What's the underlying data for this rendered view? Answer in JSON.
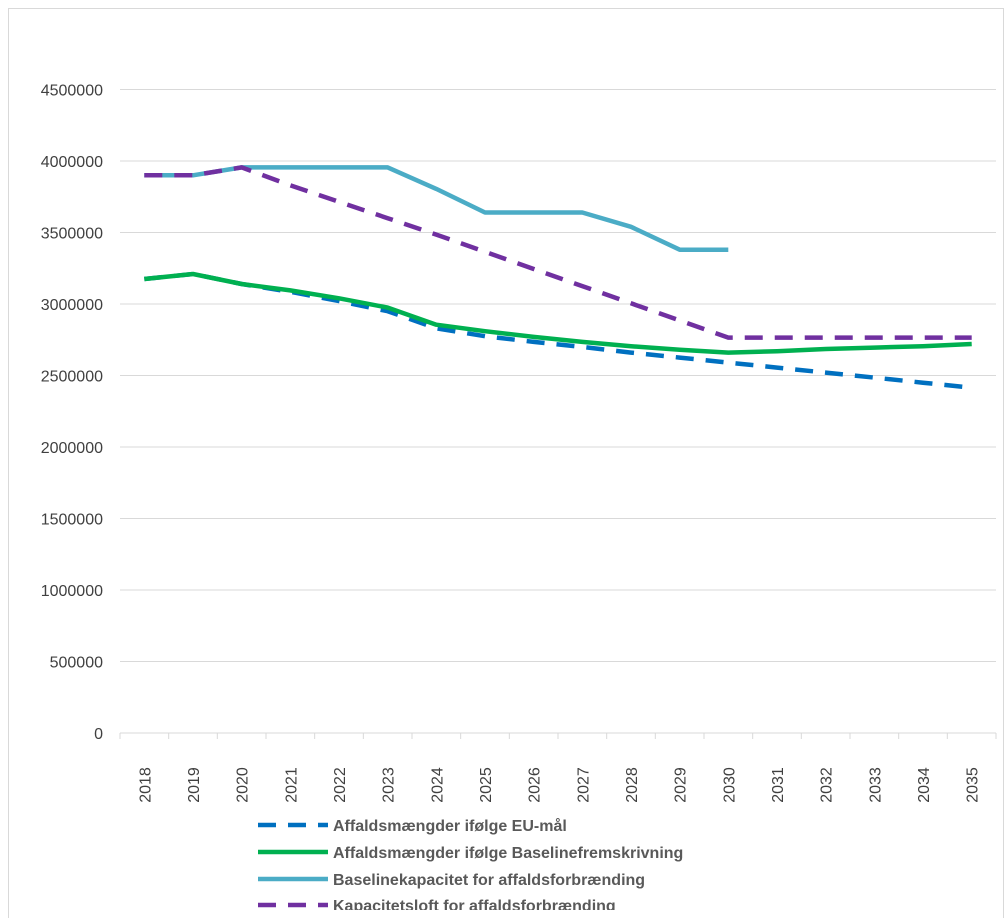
{
  "chart_data": {
    "type": "line",
    "title": "",
    "xlabel": "",
    "ylabel": "",
    "x": [
      "2018",
      "2019",
      "2020",
      "2021",
      "2022",
      "2023",
      "2024",
      "2025",
      "2026",
      "2027",
      "2028",
      "2029",
      "2030",
      "2031",
      "2032",
      "2033",
      "2034",
      "2035"
    ],
    "ylim": [
      0,
      5000000
    ],
    "yticks": [
      0,
      500000,
      1000000,
      1500000,
      2000000,
      2500000,
      3000000,
      3500000,
      4000000,
      4500000
    ],
    "grid": true,
    "legend_position": "bottom",
    "series": [
      {
        "name": "Affaldsmængder ifølge EU-mål",
        "color": "#0070c0",
        "dash": "dashed",
        "values": [
          3175000,
          3210000,
          3140000,
          3085000,
          3020000,
          2950000,
          2830000,
          2775000,
          2735000,
          2700000,
          2660000,
          2625000,
          2590000,
          2555000,
          2520000,
          2485000,
          2450000,
          2415000
        ]
      },
      {
        "name": "Affaldsmængder ifølge Baselinefremskrivning",
        "color": "#00b050",
        "dash": "solid",
        "values": [
          3175000,
          3210000,
          3140000,
          3095000,
          3040000,
          2975000,
          2855000,
          2810000,
          2770000,
          2735000,
          2705000,
          2680000,
          2660000,
          2670000,
          2685000,
          2695000,
          2705000,
          2720000
        ]
      },
      {
        "name": "Baselinekapacitet for affaldsforbrænding",
        "color": "#4bacc6",
        "dash": "solid",
        "values": [
          3900000,
          3900000,
          3955000,
          3955000,
          3955000,
          3955000,
          3805000,
          3640000,
          3640000,
          3640000,
          3540000,
          3380000,
          3380000,
          null,
          null,
          null,
          null,
          null
        ]
      },
      {
        "name": "Kapacitetsloft for affaldsforbrænding",
        "color": "#7030a0",
        "dash": "dashed",
        "values": [
          3900000,
          3900000,
          3955000,
          3830000,
          3715000,
          3600000,
          3485000,
          3365000,
          3245000,
          3125000,
          3005000,
          2885000,
          2765000,
          2765000,
          2765000,
          2765000,
          2765000,
          2765000
        ]
      }
    ]
  }
}
